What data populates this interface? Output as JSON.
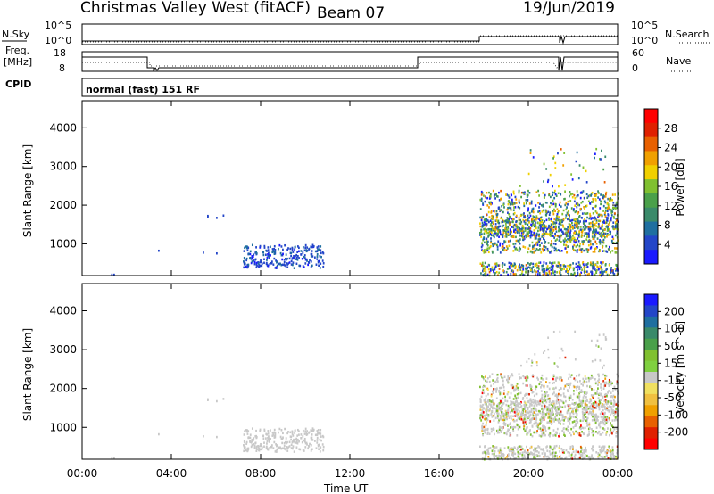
{
  "header": {
    "station": "Christmas Valley West (fitACF)",
    "beam": "Beam 07",
    "date": "19/Jun/2019"
  },
  "small_panels": {
    "nsky_label": "N.Sky",
    "nsearch_label": "N.Search",
    "nsky_ticks": [
      "10^5",
      "10^0"
    ],
    "nsearch_ticks": [
      "10^5",
      "10^0"
    ],
    "freq_label_1": "Freq.",
    "freq_label_2": "[MHz]",
    "freq_ticks": [
      "18",
      "8"
    ],
    "nave_label": "Nave",
    "nave_ticks": [
      "60",
      "0"
    ],
    "cpid_label": "CPID",
    "cpid_text": "normal (fast) 151 RF"
  },
  "colors": {
    "power": [
      "#1a1aff",
      "#2346c8",
      "#1f6fa0",
      "#3a8a6a",
      "#4aa04a",
      "#80c030",
      "#f0d000",
      "#f0a000",
      "#e86000",
      "#e02000",
      "#ff0000"
    ],
    "velocity_pos": [
      "#1a1aff",
      "#2346c8",
      "#1f6fa0",
      "#3a8a6a",
      "#4aa04a",
      "#80c030",
      "#80d040"
    ],
    "velocity_neg": [
      "#f0e060",
      "#f0c040",
      "#f0a000",
      "#e86000",
      "#e02000",
      "#ff0000"
    ],
    "ground": "#c8c8c8"
  },
  "chart_data": [
    {
      "type": "heatmap",
      "ylabel": "Slant Range [km]",
      "xlabel": "",
      "x_ticks": [
        "00:00",
        "04:00",
        "08:00",
        "12:00",
        "16:00",
        "20:00",
        "00:00"
      ],
      "x_range_hours": [
        0,
        24
      ],
      "y_ticks": [
        1000,
        2000,
        3000,
        4000
      ],
      "ylim": [
        180,
        4700
      ],
      "colorbar": {
        "label": "Power [dB]",
        "ticks": [
          "4",
          "8",
          "12",
          "16",
          "20",
          "24",
          "28"
        ],
        "range": [
          0,
          30
        ]
      }
    },
    {
      "type": "heatmap",
      "ylabel": "Slant Range [km]",
      "xlabel": "Time UT",
      "x_ticks": [
        "00:00",
        "04:00",
        "08:00",
        "12:00",
        "16:00",
        "20:00",
        "00:00"
      ],
      "x_range_hours": [
        0,
        24
      ],
      "y_ticks": [
        1000,
        2000,
        3000,
        4000
      ],
      "ylim": [
        180,
        4700
      ],
      "colorbar": {
        "label": "Velocity [m s^-1]",
        "ticks": [
          "200",
          "100",
          "50",
          "15",
          "-15",
          "-50",
          "-100",
          "-200"
        ]
      }
    }
  ]
}
